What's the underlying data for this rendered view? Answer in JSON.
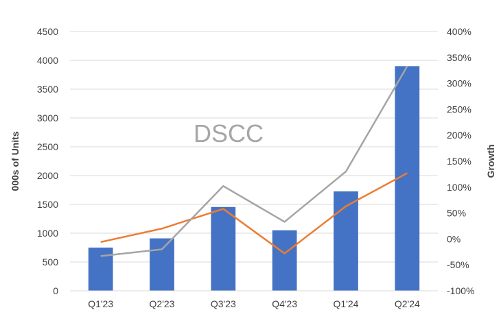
{
  "chart_data": {
    "type": "bar",
    "watermark": "DSCC",
    "categories": [
      "Q1'23",
      "Q2'23",
      "Q3'23",
      "Q4'23",
      "Q1'24",
      "Q2'24"
    ],
    "xlabel": "",
    "ylabel": "000s of Units",
    "y2label": "Growth",
    "ylim": [
      0,
      4500
    ],
    "yticks": [
      "0",
      "500",
      "1000",
      "1500",
      "2000",
      "2500",
      "3000",
      "3500",
      "4000",
      "4500"
    ],
    "y2lim": [
      -100,
      400
    ],
    "y2ticks": [
      "-100%",
      "-50%",
      "0%",
      "50%",
      "100%",
      "150%",
      "200%",
      "250%",
      "300%",
      "350%",
      "400%"
    ],
    "grid": true,
    "series": [
      {
        "type": "bar",
        "axis": "left",
        "values": [
          750,
          910,
          1455,
          1050,
          1725,
          3900
        ],
        "color": "#4472c4"
      },
      {
        "type": "line",
        "axis": "right",
        "values": [
          -6,
          20,
          58,
          -28,
          63,
          127
        ],
        "color": "#ed7d31"
      },
      {
        "type": "line",
        "axis": "right",
        "values": [
          -33,
          -20,
          102,
          33,
          130,
          333
        ],
        "color": "#a5a5a5"
      }
    ]
  }
}
